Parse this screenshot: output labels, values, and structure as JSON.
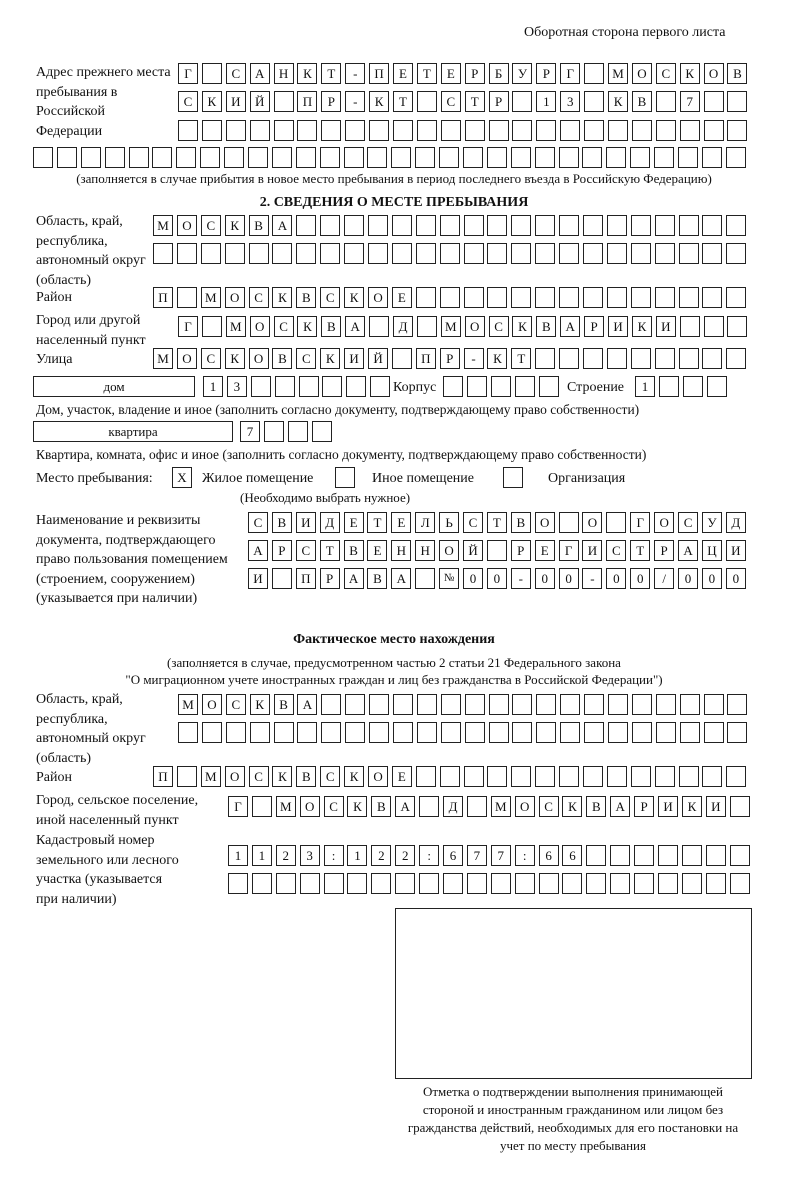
{
  "header": {
    "page_side": "Оборотная сторона первого листа"
  },
  "previous_address": {
    "label": "Адрес прежнего места пребывания в Российской Федерации",
    "rows": [
      "Г САНКТ-ПЕТЕРБУРГ МОСКОВ",
      "СКИЙ ПР-КТ СТР 13 КВ 7",
      "",
      ""
    ],
    "note": "(заполняется в случае прибытия в новое место пребывания в период последнего въезда в Российскую Федерацию)"
  },
  "section2": {
    "title": "2. СВЕДЕНИЯ О МЕСТЕ ПРЕБЫВАНИЯ",
    "region_label": "Область, край, республика, автономный округ (область)",
    "region_rows": [
      "МОСКВА",
      ""
    ],
    "district_label": "Район",
    "district": "П МОСКВСКОЕ",
    "city_label": "Город или другой населенный пункт",
    "city": "Г МОСКВА Д МОСКВАРИКИ",
    "street_label": "Улица",
    "street": "МОСКОВСКИЙ ПР-КТ",
    "house_type": "дом",
    "house_number": "13",
    "korpus_label": "Корпус",
    "korpus": "",
    "building_label": "Строение",
    "building": "1",
    "house_note": "Дом, участок, владение и иное (заполнить согласно документу, подтверждающему право собственности)",
    "apartment_type": "квартира",
    "apartment_number": "7",
    "apartment_note": "Квартира, комната, офис и иное (заполнить согласно документу, подтверждающему право собственности)",
    "stay_place_label": "Место пребывания:",
    "stay_options": [
      {
        "label": "Жилое помещение",
        "mark": "X"
      },
      {
        "label": "Иное помещение",
        "mark": ""
      },
      {
        "label": "Организация",
        "mark": ""
      }
    ],
    "stay_note": "(Необходимо выбрать нужное)",
    "document_label": "Наименование и реквизиты документа, подтверждающего право пользования помещением (строением, сооружением) (указывается при наличии)",
    "document_rows": [
      "СВИДЕТЕЛЬСТВО О ГОСУД",
      "АРСТВЕННОЙ РЕГИСТРАЦИ",
      "И ПРАВА №00-00-00/000"
    ]
  },
  "actual_location": {
    "title": "Фактическое место нахождения",
    "note_line1": "(заполняется в случае, предусмотренном частью 2 статьи 21 Федерального закона",
    "note_line2": "\"О миграционном учете иностранных граждан и лиц без гражданства в Российской Федерации\")",
    "region_label": "Область, край, республика, автономный округ (область)",
    "region_rows": [
      "МОСКВА",
      ""
    ],
    "district_label": "Район",
    "district": "П МОСКВСКОЕ",
    "city_label": "Город, сельское поселение, иной населенный пункт",
    "city": "Г МОСКВА Д МОСКВАРИКИ",
    "cadastral_label": "Кадастровый номер земельного или лесного участка (указывается при наличии)",
    "cadastral_rows": [
      "1123:122:677:66",
      ""
    ]
  },
  "confirmation": {
    "caption": "Отметка о подтверждении выполнения принимающей стороной и иностранным гражданином или лицом без гражданства действий, необходимых для его постановки на учет по месту пребывания"
  }
}
